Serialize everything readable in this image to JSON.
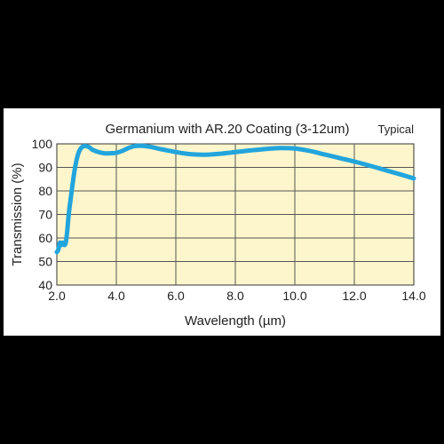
{
  "chart_data": {
    "type": "line",
    "title": "Germanium with AR.20 Coating (3-12um)",
    "note": "Typical",
    "xlabel": "Wavelength (µm)",
    "ylabel": "Transmission (%)",
    "xlim": [
      2.0,
      14.0
    ],
    "ylim": [
      40,
      100
    ],
    "xticks": [
      2.0,
      4.0,
      6.0,
      8.0,
      10.0,
      12.0,
      14.0
    ],
    "xtick_labels": [
      "2.0",
      "4.0",
      "6.0",
      "8.0",
      "10.0",
      "12.0",
      "14.0"
    ],
    "yticks": [
      40,
      50,
      60,
      70,
      80,
      90,
      100
    ],
    "ytick_labels": [
      "40",
      "50",
      "60",
      "70",
      "80",
      "90",
      "100"
    ],
    "grid": true,
    "plot_background": "#fdf6cc",
    "line_color": "#22a5dc",
    "series": [
      {
        "x": [
          2.0,
          2.05,
          2.1,
          2.15,
          2.2,
          2.25,
          2.3,
          2.35,
          2.4,
          2.5,
          2.6,
          2.7,
          2.8,
          2.9,
          3.0,
          3.1,
          3.2,
          3.4,
          3.6,
          3.8,
          4.0,
          4.2,
          4.4,
          4.6,
          4.8,
          5.0,
          5.2,
          5.4,
          5.6,
          5.8,
          6.0,
          6.5,
          7.0,
          7.5,
          8.0,
          8.5,
          9.0,
          9.5,
          10.0,
          10.5,
          11.0,
          11.5,
          12.0,
          12.5,
          13.0,
          13.5,
          14.0
        ],
        "y": [
          54,
          55,
          58,
          57,
          58,
          57,
          58,
          63,
          70,
          80,
          89,
          95,
          98,
          99,
          99,
          98.5,
          97.5,
          96.5,
          96,
          96,
          96.2,
          97,
          98.2,
          99,
          99.2,
          99,
          98.6,
          98,
          97.5,
          97,
          96.5,
          95.6,
          95.4,
          95.8,
          96.5,
          97.2,
          97.8,
          98.2,
          98,
          97,
          95.5,
          94,
          92.5,
          90.8,
          89,
          87.2,
          85.3
        ]
      }
    ]
  }
}
